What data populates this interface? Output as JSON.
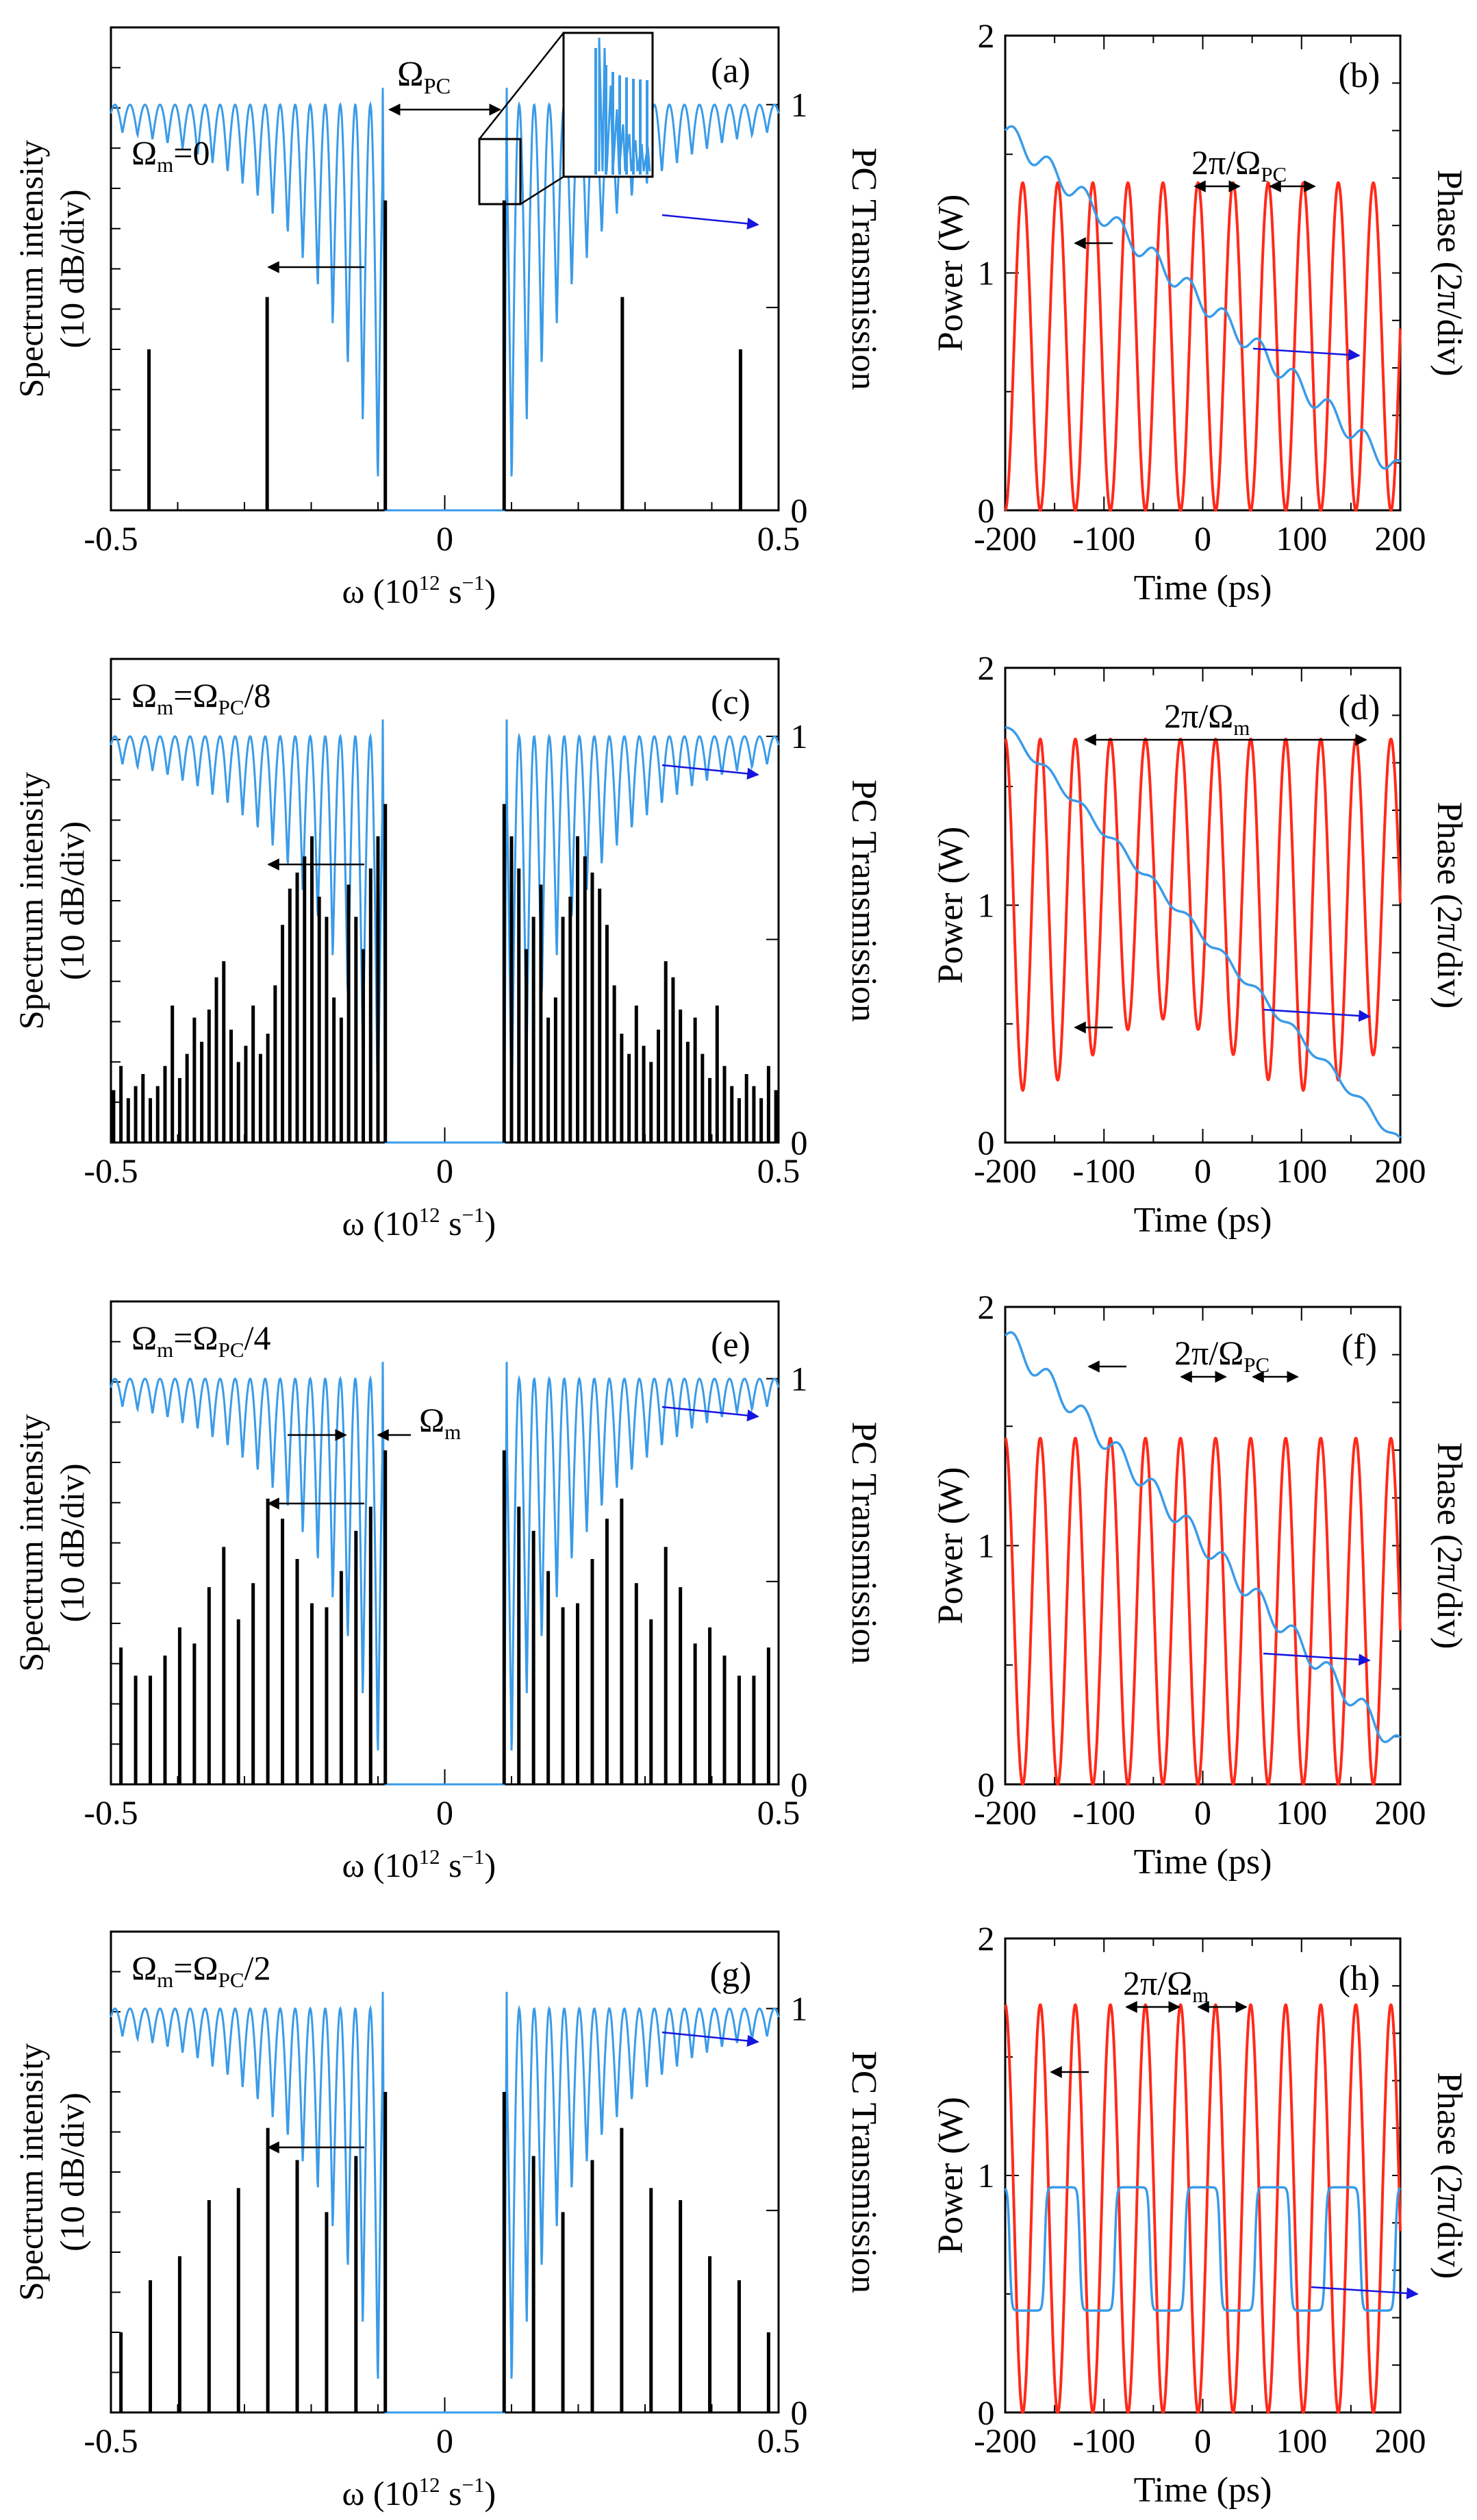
{
  "colors": {
    "spectrum_lines": "#000000",
    "transmission": "#3a9be8",
    "power": "#ff2a1a",
    "phase": "#3a9be8",
    "arrow_left": "#000000",
    "arrow_right": "#1515e0"
  },
  "spectra": [
    {
      "panel": "(a)",
      "omega_m_label": "Ωm=0",
      "type": "bar",
      "title": "",
      "xlabel": "ω (1012 s−1)",
      "ylabel_left": [
        "Spectrum intensity",
        "(10 dB/div)"
      ],
      "ylabel_right": "PC Transmission",
      "xlim": [
        -0.5,
        0.5
      ],
      "xticks": [
        "-0.5",
        "0",
        "0.5"
      ],
      "y_right_ticks": [
        "0",
        "1"
      ],
      "x": [
        -0.443,
        -0.266,
        -0.089,
        0.089,
        0.266,
        0.443
      ],
      "values": [
        4.0,
        5.3,
        7.7,
        7.7,
        5.3,
        4.0
      ],
      "y_unit": "div (10 dB)",
      "pc_gap": [
        -0.089,
        0.089
      ],
      "annotations": [
        "ΩPC"
      ]
    },
    {
      "panel": "(c)",
      "omega_m_label": "Ωm=ΩPC/8",
      "type": "bar",
      "xlabel": "ω (1012 s−1)",
      "ylabel_left": [
        "Spectrum intensity",
        "(10 dB/div)"
      ],
      "ylabel_right": "PC Transmission",
      "xlim": [
        -0.5,
        0.5
      ],
      "xticks": [
        "-0.5",
        "0",
        "0.5"
      ],
      "y_right_ticks": [
        "0",
        "1"
      ],
      "x": [
        -0.089,
        -0.1,
        -0.111,
        -0.122,
        -0.133,
        -0.144,
        -0.155,
        -0.166,
        -0.177,
        -0.188,
        -0.199,
        -0.21,
        -0.221,
        -0.232,
        -0.243,
        -0.254,
        -0.265,
        -0.276,
        -0.287,
        -0.298,
        -0.309,
        -0.32,
        -0.331,
        -0.342,
        -0.353,
        -0.364,
        -0.375,
        -0.386,
        -0.397,
        -0.408,
        -0.419,
        -0.43,
        -0.441,
        -0.452,
        -0.463,
        -0.474,
        -0.485,
        -0.496
      ],
      "values": [
        8.4,
        7.6,
        6.8,
        4.8,
        5.6,
        6.4,
        3.1,
        3.6,
        5.6,
        6.1,
        7.6,
        7.1,
        6.7,
        6.3,
        5.4,
        3.9,
        2.7,
        2.2,
        3.4,
        2.4,
        2.0,
        2.8,
        4.5,
        4.1,
        3.3,
        2.5,
        3.1,
        2.2,
        1.6,
        3.4,
        1.9,
        1.4,
        1.1,
        1.7,
        1.4,
        1.1,
        1.9,
        1.3
      ],
      "values_mirrored": true,
      "y_unit": "div (10 dB)"
    },
    {
      "panel": "(e)",
      "omega_m_label": "Ωm=ΩPC/4",
      "type": "bar",
      "xlabel": "ω (1012 s−1)",
      "ylabel_left": [
        "Spectrum intensity",
        "(10 dB/div)"
      ],
      "ylabel_right": "PC Transmission",
      "xlim": [
        -0.5,
        0.5
      ],
      "xticks": [
        "-0.5",
        "0",
        "0.5"
      ],
      "y_right_ticks": [
        "0",
        "1"
      ],
      "x": [
        -0.089,
        -0.111,
        -0.133,
        -0.155,
        -0.177,
        -0.199,
        -0.221,
        -0.243,
        -0.265,
        -0.287,
        -0.309,
        -0.331,
        -0.353,
        -0.375,
        -0.397,
        -0.419,
        -0.441,
        -0.463,
        -0.485
      ],
      "values": [
        8.3,
        6.9,
        6.3,
        5.3,
        4.4,
        4.5,
        5.6,
        6.6,
        7.1,
        5.0,
        4.1,
        5.9,
        4.9,
        3.5,
        3.9,
        3.2,
        2.7,
        2.7,
        3.4
      ],
      "values_mirrored": true,
      "y_unit": "div (10 dB)",
      "annotations": [
        "Ωm"
      ]
    },
    {
      "panel": "(g)",
      "omega_m_label": "Ωm=ΩPC/2",
      "type": "bar",
      "xlabel": "ω (1012 s−1)",
      "ylabel_left": [
        "Spectrum intensity",
        "(10 dB/div)"
      ],
      "ylabel_right": "PC Transmission",
      "xlim": [
        -0.5,
        0.5
      ],
      "xticks": [
        "-0.5",
        "0",
        "0.5"
      ],
      "y_right_ticks": [
        "0",
        "1"
      ],
      "x": [
        -0.089,
        -0.133,
        -0.177,
        -0.221,
        -0.265,
        -0.309,
        -0.353,
        -0.397,
        -0.441,
        -0.485
      ],
      "values": [
        8.0,
        6.4,
        5.0,
        6.3,
        7.1,
        5.6,
        5.3,
        3.9,
        3.3,
        2.0
      ],
      "values_mirrored": true,
      "y_unit": "div (10 dB)"
    }
  ],
  "temporal": [
    {
      "panel": "(b)",
      "type": "line",
      "xlabel": "Time (ps)",
      "ylabel_left": "Power (W)",
      "ylabel_right": "Phase (2π/div)",
      "xlim": [
        -200,
        200
      ],
      "ylim": [
        0,
        2
      ],
      "xticks": [
        "-200",
        "-100",
        "0",
        "100",
        "200"
      ],
      "yticks": [
        "0",
        "1",
        "2"
      ],
      "annotation": "2π/ΩPC",
      "series": [
        {
          "name": "Power",
          "period_ps": 35.5,
          "max": 1.38,
          "min": 0.0
        },
        {
          "name": "Phase",
          "y_start": 1.6,
          "y_end": 0.16,
          "style": "staircase"
        }
      ]
    },
    {
      "panel": "(d)",
      "type": "line",
      "xlabel": "Time (ps)",
      "ylabel_left": "Power (W)",
      "ylabel_right": "Phase (2π/div)",
      "xlim": [
        -200,
        200
      ],
      "ylim": [
        0,
        2
      ],
      "xticks": [
        "-200",
        "-100",
        "0",
        "100",
        "200"
      ],
      "yticks": [
        "0",
        "1",
        "2"
      ],
      "annotation": "2π/Ωm",
      "series": [
        {
          "name": "Power",
          "period_ps": 35.5,
          "envelope_period_ps": 284,
          "max": 1.7,
          "min_range": [
            0.2,
            0.5
          ]
        },
        {
          "name": "Phase",
          "y_start": 1.75,
          "y_end": 0.0,
          "style": "smooth"
        }
      ]
    },
    {
      "panel": "(f)",
      "type": "line",
      "xlabel": "Time (ps)",
      "ylabel_left": "Power (W)",
      "ylabel_right": "Phase (2π/div)",
      "xlim": [
        -200,
        200
      ],
      "ylim": [
        0,
        2
      ],
      "xticks": [
        "-200",
        "-100",
        "0",
        "100",
        "200"
      ],
      "yticks": [
        "0",
        "1",
        "2"
      ],
      "annotation": "2π/ΩPC",
      "series": [
        {
          "name": "Power",
          "period_ps": 35.5,
          "max": 1.45,
          "min": 0.0
        },
        {
          "name": "Phase",
          "y_start": 1.88,
          "y_end": 0.15,
          "style": "staircase"
        }
      ]
    },
    {
      "panel": "(h)",
      "type": "line",
      "xlabel": "Time (ps)",
      "ylabel_left": "Power (W)",
      "ylabel_right": "Phase (2π/div)",
      "xlim": [
        -200,
        200
      ],
      "ylim": [
        0,
        2
      ],
      "xticks": [
        "-200",
        "-100",
        "0",
        "100",
        "200"
      ],
      "yticks": [
        "0",
        "1",
        "2"
      ],
      "annotation": "2π/Ωm",
      "series": [
        {
          "name": "Power",
          "period_ps": 35.5,
          "max": 1.72,
          "min": 0.0
        },
        {
          "name": "Phase",
          "y_low": 0.43,
          "y_high": 0.95,
          "style": "square-wave",
          "period_ps": 71
        }
      ]
    }
  ]
}
